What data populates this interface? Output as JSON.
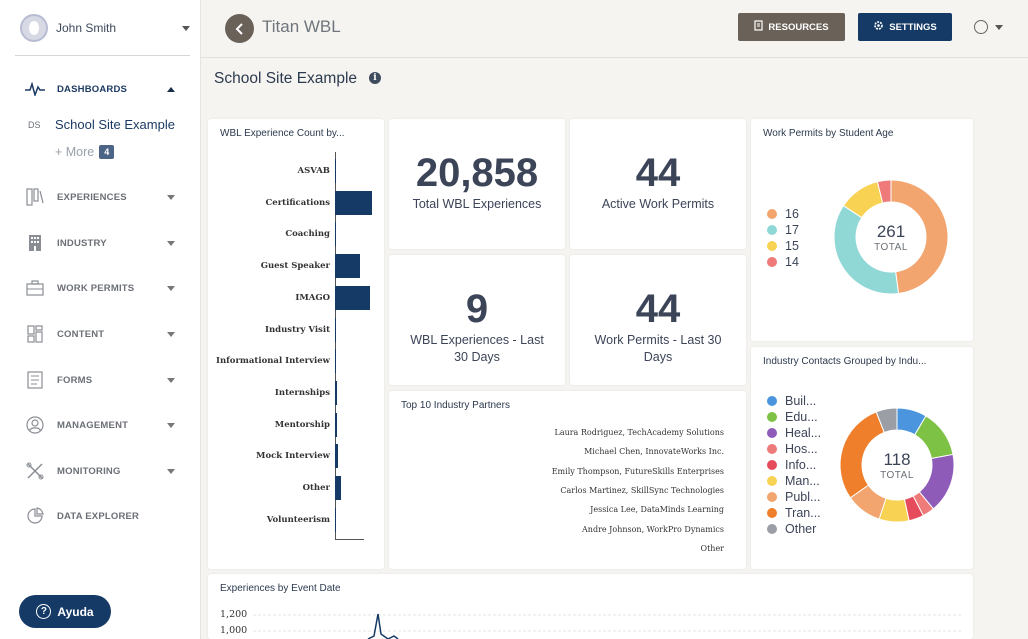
{
  "user": {
    "name": "John Smith"
  },
  "nav": {
    "dashboards": "DASHBOARDS",
    "sub_abbr": "DS",
    "sub_label": "School Site Example",
    "more_label": "+ More",
    "more_count": "4",
    "experiences": "EXPERIENCES",
    "industry": "INDUSTRY",
    "work_permits": "WORK PERMITS",
    "content": "CONTENT",
    "forms": "FORMS",
    "management": "MANAGEMENT",
    "monitoring": "MONITORING",
    "data_explorer": "DATA EXPLORER"
  },
  "help": {
    "label": "Ayuda"
  },
  "topbar": {
    "title": "Titan WBL",
    "resources": "RESOURCES",
    "settings": "SETTINGS"
  },
  "page": {
    "title": "School Site Example"
  },
  "cards": {
    "wbl_count_title": "WBL Experience Count by...",
    "kpi1_value": "20,858",
    "kpi1_label": "Total WBL Experiences",
    "kpi2_value": "44",
    "kpi2_label": "Active Work Permits",
    "kpi3_value": "9",
    "kpi3_label": "WBL Experiences - Last 30 Days",
    "kpi4_value": "44",
    "kpi4_label": "Work Permits - Last 30 Days",
    "permits_title": "Work Permits by Student Age",
    "permits_total": "261",
    "permits_total_label": "TOTAL",
    "contacts_title": "Industry Contacts Grouped by Indu...",
    "contacts_total": "118",
    "contacts_total_label": "TOTAL",
    "partners_title": "Top 10 Industry Partners",
    "events_title": "Experiences by Event Date"
  },
  "partners": [
    "Laura Rodriguez, TechAcademy Solutions",
    "Michael Chen, InnovateWorks Inc.",
    "Emily Thompson, FutureSkills Enterprises",
    "Carlos Martinez, SkillSync Technologies",
    "Jessica Lee, DataMinds Learning",
    "Andre Johnson, WorkPro Dynamics",
    "Other"
  ],
  "chart_data": [
    {
      "type": "bar",
      "title": "WBL Experience Count by...",
      "categories": [
        "ASVAB",
        "Certifications",
        "Coaching",
        "Guest Speaker",
        "IMAGO",
        "Industry Visit",
        "Informational Interview",
        "Internships",
        "Mentorship",
        "Mock Interview",
        "Other",
        "Volunteerism"
      ],
      "values": [
        0,
        2800,
        40,
        1900,
        2600,
        20,
        60,
        150,
        120,
        200,
        450,
        10
      ]
    },
    {
      "type": "pie",
      "title": "Work Permits by Student Age",
      "total": 261,
      "labels": [
        "16",
        "17",
        "15",
        "14"
      ],
      "values": [
        125,
        95,
        31,
        10
      ],
      "colors": [
        "#f2a56e",
        "#8fd8d6",
        "#f8d253",
        "#ee7a7a"
      ]
    },
    {
      "type": "pie",
      "title": "Industry Contacts Grouped by Indu...",
      "total": 118,
      "labels": [
        "Buil...",
        "Edu...",
        "Heal...",
        "Hos...",
        "Info...",
        "Man...",
        "Publ...",
        "Tran...",
        "Other"
      ],
      "values": [
        10,
        16,
        20,
        4,
        5,
        10,
        12,
        34,
        7
      ],
      "colors": [
        "#4a95dd",
        "#7dc244",
        "#8e5bb8",
        "#ef7a7a",
        "#e54b5b",
        "#f8d253",
        "#f2a56e",
        "#ef7f2a",
        "#9b9ea4"
      ]
    },
    {
      "type": "line",
      "title": "Experiences by Event Date",
      "yticks": [
        "1,200",
        "1,000"
      ]
    }
  ]
}
